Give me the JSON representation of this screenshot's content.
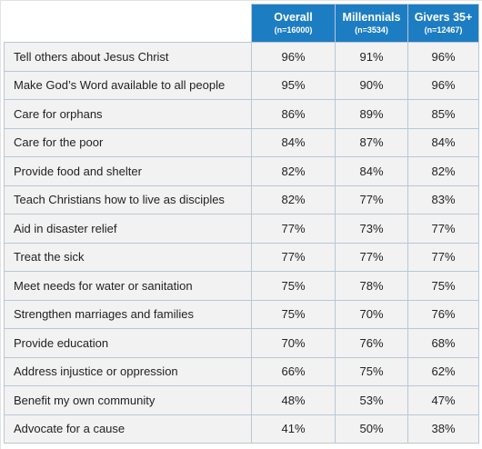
{
  "chart_data": {
    "type": "table",
    "columns": [
      {
        "name": "Overall",
        "n": "(n=16000)"
      },
      {
        "name": "Millennials",
        "n": "(n=3534)"
      },
      {
        "name": "Givers 35+",
        "n": "(n=12467)"
      }
    ],
    "rows": [
      {
        "label": "Tell others about Jesus Christ",
        "values": [
          "96%",
          "91%",
          "96%"
        ]
      },
      {
        "label": "Make God’s Word available to all people",
        "values": [
          "95%",
          "90%",
          "96%"
        ]
      },
      {
        "label": "Care for orphans",
        "values": [
          "86%",
          "89%",
          "85%"
        ]
      },
      {
        "label": "Care for the poor",
        "values": [
          "84%",
          "87%",
          "84%"
        ]
      },
      {
        "label": "Provide food and shelter",
        "values": [
          "82%",
          "84%",
          "82%"
        ]
      },
      {
        "label": "Teach Christians how to live as disciples",
        "values": [
          "82%",
          "77%",
          "83%"
        ]
      },
      {
        "label": "Aid in disaster relief",
        "values": [
          "77%",
          "73%",
          "77%"
        ]
      },
      {
        "label": "Treat the sick",
        "values": [
          "77%",
          "77%",
          "77%"
        ]
      },
      {
        "label": "Meet needs for water or sanitation",
        "values": [
          "75%",
          "78%",
          "75%"
        ]
      },
      {
        "label": "Strengthen marriages and families",
        "values": [
          "75%",
          "70%",
          "76%"
        ]
      },
      {
        "label": "Provide education",
        "values": [
          "70%",
          "76%",
          "68%"
        ]
      },
      {
        "label": "Address injustice or oppression",
        "values": [
          "66%",
          "75%",
          "62%"
        ]
      },
      {
        "label": "Benefit my own community",
        "values": [
          "48%",
          "53%",
          "47%"
        ]
      },
      {
        "label": "Advocate for a cause",
        "values": [
          "41%",
          "50%",
          "38%"
        ]
      }
    ]
  },
  "colors": {
    "header_background": "#1d7dc3",
    "header_text": "#ffffff",
    "row_background": "#f2f2f2",
    "grid_lines": "#b9c7d6",
    "body_text": "#222222"
  }
}
